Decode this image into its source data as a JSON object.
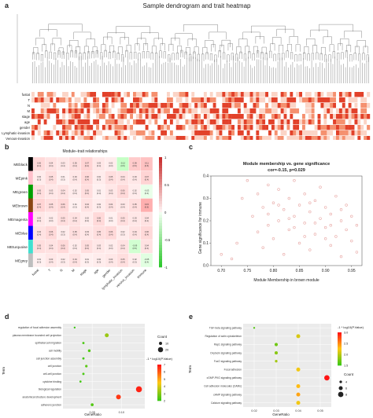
{
  "panel_a": {
    "letter": "a",
    "title": "Sample dendrogram and trait heatmap",
    "traits": [
      "fustat",
      "T",
      "N",
      "M",
      "stage",
      "age",
      "gender",
      "Lymphatic-invasion",
      "Venous-invasion",
      "immune"
    ]
  },
  "panel_b": {
    "letter": "b",
    "title": "Module–trait relationships",
    "modules": [
      "MEblack",
      "MEpink",
      "MEgreen",
      "MEbrown",
      "MEmagenta",
      "MEblue",
      "MEturquoise",
      "MEgrey"
    ],
    "module_colors": [
      "#000000",
      "#ffc0cb",
      "#00a000",
      "#8b4513",
      "#ff00ff",
      "#0000ff",
      "#40e0d0",
      "#bebebe"
    ],
    "traits": [
      "fustat",
      "T",
      "N",
      "M",
      "stage",
      "age",
      "gender",
      "lymphatic_invasion",
      "venous_invasion",
      "immune"
    ],
    "legend_ticks": [
      "1",
      "0.5",
      "0",
      "-0.5",
      "-1"
    ],
    "correlations": [
      [
        0.06,
        0.04,
        0.03,
        0.05,
        0.07,
        0.03,
        0.02,
        -0.12,
        0.09,
        0.11
      ],
      [
        0.02,
        0.05,
        0.01,
        0.03,
        0.06,
        0.02,
        0.05,
        0.04,
        0.03,
        0.07
      ],
      [
        0.05,
        0.03,
        0.04,
        0.02,
        0.05,
        0.01,
        0.03,
        0.06,
        0.02,
        -0.03
      ],
      [
        0.07,
        0.05,
        0.06,
        0.01,
        0.04,
        0.02,
        0.04,
        0.03,
        0.05,
        0.15
      ],
      [
        0.03,
        0.02,
        0.05,
        0.04,
        0.02,
        0.06,
        0.01,
        0.05,
        0.03,
        0.04
      ],
      [
        0.04,
        0.06,
        0.02,
        0.05,
        0.03,
        0.05,
        0.06,
        0.02,
        0.04,
        0.06
      ],
      [
        0.05,
        0.04,
        0.06,
        0.02,
        0.05,
        0.03,
        0.02,
        0.04,
        -0.09,
        0.04
      ],
      [
        0.01,
        0.03,
        0.02,
        0.04,
        0.01,
        0.02,
        0.03,
        0.05,
        0.02,
        -0.05
      ]
    ]
  },
  "panel_c": {
    "letter": "c",
    "title": "Module membership vs. gene significance",
    "subtitle": "cor=-0.15, p=0.029",
    "xlabel": "Module Membership in brown module",
    "ylabel": "Gene significance for immune",
    "xticks": [
      "0.70",
      "0.75",
      "0.80",
      "0.85",
      "0.90",
      "0.95"
    ],
    "yticks": [
      "0.0",
      "0.1",
      "0.2",
      "0.3",
      "0.4"
    ]
  },
  "panel_d": {
    "letter": "d",
    "terms": [
      "regulation of focal adhesion assembly",
      "plasma membrane bounded cell projection",
      "epithelial cell migration",
      "cell motility",
      "cell junction assembly",
      "cell junction",
      "cell-cell junction",
      "cytokine binding",
      "biological regulation",
      "anatomical structure development",
      "adherens junction"
    ],
    "xlabel": "GeneRatio",
    "ylabel": "Term",
    "xticks": [
      "0.05",
      "0.10"
    ],
    "count_title": "Count",
    "count_labels": [
      "10",
      "20"
    ],
    "color_title": "-1 * log10(P.Value)",
    "color_labels": [
      "7",
      "6",
      "5",
      "4",
      "3",
      "2"
    ]
  },
  "panel_e": {
    "letter": "e",
    "terms": [
      "TGF-beta signaling pathway",
      "Regulation of actin cytoskeleton",
      "Rap1 signaling pathway",
      "Oxytocin signaling pathway",
      "FoxO signaling pathway",
      "Focal adhesion",
      "cGMP-PKG signaling pathway",
      "Cell adhesion molecules (CAMs)",
      "cAMP signaling pathway",
      "Calcium signaling pathway"
    ],
    "xlabel": "GeneRatio",
    "ylabel": "Term",
    "xticks": [
      "0.02",
      "0.03",
      "0.04",
      "0.05"
    ],
    "count_title": "Count",
    "count_labels": [
      "4",
      "6",
      "8"
    ],
    "color_title": "-1 * log10(P.Value)",
    "color_labels": [
      "3.0",
      "2.5",
      "2.0",
      "1.5"
    ]
  },
  "chart_data": [
    {
      "type": "scatter",
      "panel": "c",
      "title": "Module membership vs. gene significance",
      "subtitle": "cor=-0.15, p=0.029",
      "xlabel": "Module Membership in brown module",
      "ylabel": "Gene significance for immune",
      "xlim": [
        0.68,
        0.97
      ],
      "ylim": [
        0.0,
        0.4
      ],
      "color": "#e8a6a3",
      "points": [
        [
          0.7,
          0.05
        ],
        [
          0.72,
          0.03
        ],
        [
          0.73,
          0.1
        ],
        [
          0.74,
          0.3
        ],
        [
          0.75,
          0.38
        ],
        [
          0.76,
          0.22
        ],
        [
          0.77,
          0.15
        ],
        [
          0.77,
          0.32
        ],
        [
          0.78,
          0.26
        ],
        [
          0.78,
          0.08
        ],
        [
          0.79,
          0.18
        ],
        [
          0.79,
          0.36
        ],
        [
          0.8,
          0.28
        ],
        [
          0.8,
          0.12
        ],
        [
          0.81,
          0.34
        ],
        [
          0.81,
          0.2
        ],
        [
          0.82,
          0.25
        ],
        [
          0.82,
          0.05
        ],
        [
          0.83,
          0.3
        ],
        [
          0.83,
          0.16
        ],
        [
          0.84,
          0.22
        ],
        [
          0.84,
          0.38
        ],
        [
          0.85,
          0.27
        ],
        [
          0.85,
          0.1
        ],
        [
          0.86,
          0.19
        ],
        [
          0.86,
          0.32
        ],
        [
          0.87,
          0.24
        ],
        [
          0.87,
          0.07
        ],
        [
          0.88,
          0.29
        ],
        [
          0.88,
          0.14
        ],
        [
          0.89,
          0.21
        ],
        [
          0.89,
          0.35
        ],
        [
          0.9,
          0.17
        ],
        [
          0.9,
          0.26
        ],
        [
          0.91,
          0.09
        ],
        [
          0.91,
          0.23
        ],
        [
          0.92,
          0.31
        ],
        [
          0.92,
          0.13
        ],
        [
          0.93,
          0.2
        ],
        [
          0.93,
          0.04
        ],
        [
          0.94,
          0.16
        ],
        [
          0.94,
          0.27
        ],
        [
          0.95,
          0.11
        ],
        [
          0.95,
          0.22
        ],
        [
          0.96,
          0.18
        ],
        [
          0.96,
          0.06
        ],
        [
          0.83,
          0.21
        ],
        [
          0.86,
          0.13
        ],
        [
          0.88,
          0.19
        ],
        [
          0.9,
          0.12
        ],
        [
          0.79,
          0.23
        ],
        [
          0.81,
          0.27
        ],
        [
          0.84,
          0.17
        ],
        [
          0.87,
          0.28
        ],
        [
          0.91,
          0.18
        ],
        [
          0.93,
          0.25
        ]
      ]
    },
    {
      "type": "scatter",
      "panel": "d",
      "xlabel": "GeneRatio",
      "ylabel": "Term",
      "xlim": [
        0.0,
        0.14
      ],
      "series": [
        {
          "values": [
            {
              "term": "regulation of focal adhesion assembly",
              "gene_ratio": 0.02,
              "count": 4,
              "neglog10p": 2.0
            },
            {
              "term": "plasma membrane bounded cell projection",
              "gene_ratio": 0.075,
              "count": 14,
              "neglog10p": 3.2
            },
            {
              "term": "epithelial cell migration",
              "gene_ratio": 0.035,
              "count": 6,
              "neglog10p": 2.2
            },
            {
              "term": "cell motility",
              "gene_ratio": 0.045,
              "count": 8,
              "neglog10p": 2.3
            },
            {
              "term": "cell junction assembly",
              "gene_ratio": 0.035,
              "count": 6,
              "neglog10p": 2.1
            },
            {
              "term": "cell junction",
              "gene_ratio": 0.04,
              "count": 7,
              "neglog10p": 2.4
            },
            {
              "term": "cell-cell junction",
              "gene_ratio": 0.035,
              "count": 6,
              "neglog10p": 2.2
            },
            {
              "term": "cytokine binding",
              "gene_ratio": 0.03,
              "count": 5,
              "neglog10p": 2.1
            },
            {
              "term": "biological regulation",
              "gene_ratio": 0.13,
              "count": 24,
              "neglog10p": 6.8
            },
            {
              "term": "anatomical structure development",
              "gene_ratio": 0.095,
              "count": 18,
              "neglog10p": 6.5
            },
            {
              "term": "adherens junction",
              "gene_ratio": 0.05,
              "count": 9,
              "neglog10p": 2.3
            }
          ]
        }
      ]
    },
    {
      "type": "scatter",
      "panel": "e",
      "xlabel": "GeneRatio",
      "ylabel": "Term",
      "xlim": [
        0.015,
        0.055
      ],
      "series": [
        {
          "values": [
            {
              "term": "TGF-beta signaling pathway",
              "gene_ratio": 0.02,
              "count": 3,
              "neglog10p": 1.6
            },
            {
              "term": "Regulation of actin cytoskeleton",
              "gene_ratio": 0.04,
              "count": 6,
              "neglog10p": 2.1
            },
            {
              "term": "Rap1 signaling pathway",
              "gene_ratio": 0.03,
              "count": 5,
              "neglog10p": 1.7
            },
            {
              "term": "Oxytocin signaling pathway",
              "gene_ratio": 0.03,
              "count": 5,
              "neglog10p": 1.8
            },
            {
              "term": "FoxO signaling pathway",
              "gene_ratio": 0.03,
              "count": 4,
              "neglog10p": 1.9
            },
            {
              "term": "Focal adhesion",
              "gene_ratio": 0.04,
              "count": 6,
              "neglog10p": 2.2
            },
            {
              "term": "cGMP-PKG signaling pathway",
              "gene_ratio": 0.053,
              "count": 8,
              "neglog10p": 3.0
            },
            {
              "term": "Cell adhesion molecules (CAMs)",
              "gene_ratio": 0.04,
              "count": 6,
              "neglog10p": 2.3
            },
            {
              "term": "cAMP signaling pathway",
              "gene_ratio": 0.04,
              "count": 6,
              "neglog10p": 2.4
            },
            {
              "term": "Calcium signaling pathway",
              "gene_ratio": 0.04,
              "count": 6,
              "neglog10p": 2.2
            }
          ]
        }
      ]
    }
  ]
}
